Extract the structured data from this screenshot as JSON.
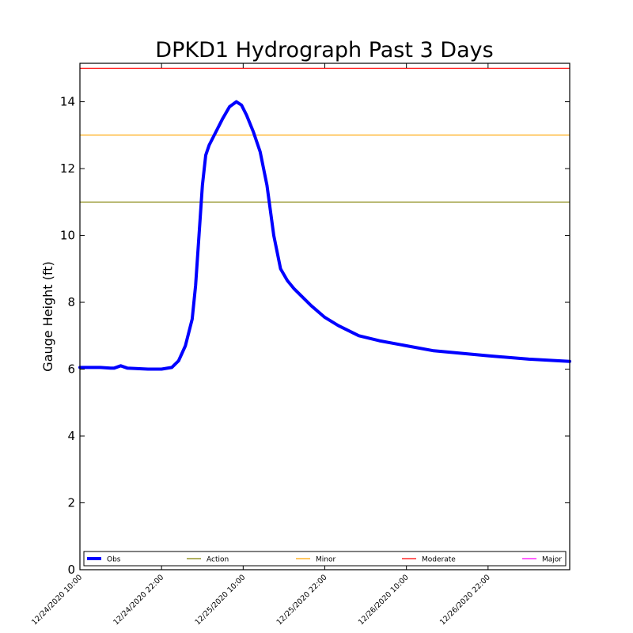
{
  "chart_data": {
    "type": "line",
    "title": "DPKD1 Hydrograph Past 3 Days",
    "xlabel": "",
    "ylabel": "Gauge Height (ft)",
    "ylim": [
      0,
      15.15
    ],
    "xlim": [
      "12/24/2020 10:00",
      "12/27/2020 10:00"
    ],
    "grid": false,
    "legend_position": "bottom",
    "x_ticks": [
      "12/24/2020 10:00",
      "12/24/2020 22:00",
      "12/25/2020 10:00",
      "12/25/2020 22:00",
      "12/26/2020 10:00",
      "12/26/2020 22:00"
    ],
    "y_ticks": [
      0,
      2,
      4,
      6,
      8,
      10,
      12,
      14
    ],
    "series": [
      {
        "name": "Obs",
        "color": "#0000ff",
        "x": [
          "12/24/2020 10:00",
          "12/24/2020 13:00",
          "12/24/2020 14:30",
          "12/24/2020 15:00",
          "12/24/2020 16:00",
          "12/24/2020 17:00",
          "12/24/2020 20:00",
          "12/24/2020 22:00",
          "12/24/2020 23:30",
          "12/25/2020 00:30",
          "12/25/2020 01:30",
          "12/25/2020 02:30",
          "12/25/2020 03:00",
          "12/25/2020 03:30",
          "12/25/2020 04:00",
          "12/25/2020 04:30",
          "12/25/2020 05:00",
          "12/25/2020 06:00",
          "12/25/2020 07:00",
          "12/25/2020 08:00",
          "12/25/2020 09:00",
          "12/25/2020 09:45",
          "12/25/2020 10:30",
          "12/25/2020 11:30",
          "12/25/2020 12:30",
          "12/25/2020 13:30",
          "12/25/2020 14:30",
          "12/25/2020 15:30",
          "12/25/2020 16:30",
          "12/25/2020 17:30",
          "12/25/2020 18:30",
          "12/25/2020 20:00",
          "12/25/2020 22:00",
          "12/26/2020 00:00",
          "12/26/2020 03:00",
          "12/26/2020 06:00",
          "12/26/2020 10:00",
          "12/26/2020 14:00",
          "12/26/2020 22:00",
          "12/27/2020 04:00",
          "12/27/2020 10:00"
        ],
        "values": [
          6.05,
          6.05,
          6.03,
          6.03,
          6.1,
          6.03,
          6.0,
          6.0,
          6.05,
          6.25,
          6.7,
          7.5,
          8.5,
          10.0,
          11.5,
          12.4,
          12.7,
          13.1,
          13.5,
          13.85,
          14.0,
          13.9,
          13.6,
          13.1,
          12.5,
          11.5,
          10.0,
          9.0,
          8.65,
          8.4,
          8.2,
          7.9,
          7.55,
          7.3,
          7.0,
          6.85,
          6.7,
          6.55,
          6.4,
          6.3,
          6.23
        ]
      }
    ],
    "thresholds": [
      {
        "name": "Action",
        "value": 11.0,
        "color": "#808000"
      },
      {
        "name": "Minor",
        "value": 13.0,
        "color": "#ffa500"
      },
      {
        "name": "Moderate",
        "value": 15.0,
        "color": "#ff0000"
      },
      {
        "name": "Major",
        "value": null,
        "color": "#ff00ff"
      }
    ]
  }
}
